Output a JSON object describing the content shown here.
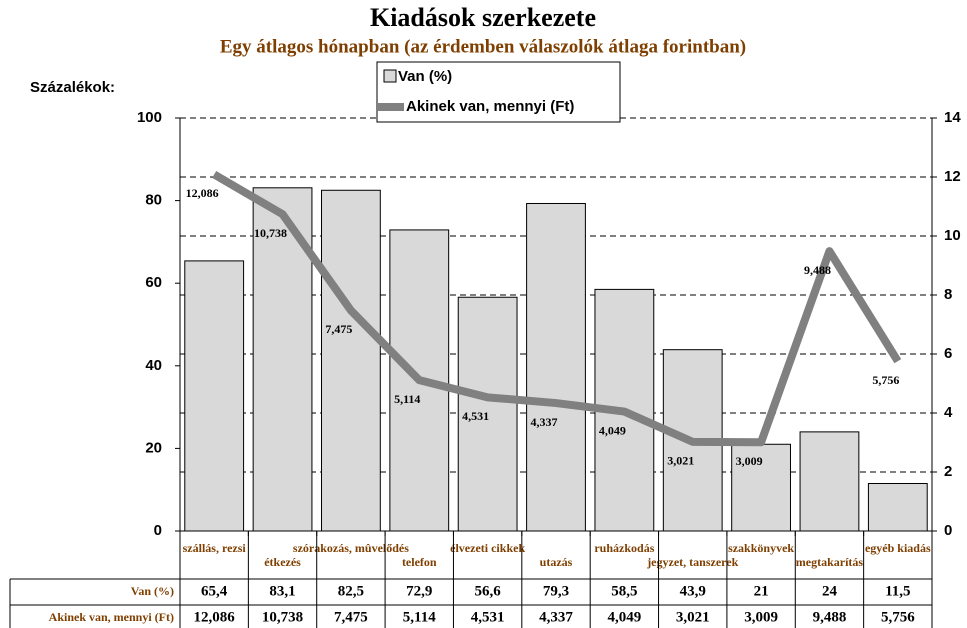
{
  "chart_data": {
    "type": "bar_line",
    "title": "Kiadások szerkezete",
    "subtitle": "Egy átlagos hónapban (az érdemben válaszolók átlaga forintban)",
    "y_label": "Százalékok:",
    "categories": [
      "szállás, rezsi",
      "étkezés",
      "szórakozás, mûvelődés",
      "telefon",
      "élvezeti cikkek",
      "utazás",
      "ruházkodás",
      "jegyzet, tanszerek",
      "szakkönyvek",
      "megtakarítás",
      "egyéb kiadás"
    ],
    "series": [
      {
        "name": "Van (%)",
        "type": "bar",
        "color": "#d9d9d9",
        "values": [
          65.4,
          83.1,
          82.5,
          72.9,
          56.6,
          79.3,
          58.5,
          43.9,
          21,
          24,
          11.5
        ],
        "value_labels": [
          "65,4",
          "83,1",
          "82,5",
          "72,9",
          "56,6",
          "79,3",
          "58,5",
          "43,9",
          "21",
          "24",
          "11,5"
        ]
      },
      {
        "name": "Akinek van, mennyi (Ft)",
        "type": "line",
        "axis": "y2",
        "color": "#808080",
        "values": [
          12.086,
          10.738,
          7.475,
          5.114,
          4.531,
          4.337,
          4.049,
          3.021,
          3.009,
          9.488,
          5.756
        ],
        "value_labels": [
          "12,086",
          "10,738",
          "7,475",
          "5,114",
          "4,531",
          "4,337",
          "4,049",
          "3,021",
          "3,009",
          "9,488",
          "5,756"
        ]
      }
    ],
    "ylim": [
      0,
      100
    ],
    "yticks": [
      0,
      20,
      40,
      60,
      80,
      100
    ],
    "y2lim": [
      0,
      14
    ],
    "y2ticks": [
      0,
      2,
      4,
      6,
      8,
      10,
      12,
      14
    ],
    "grid": true
  }
}
